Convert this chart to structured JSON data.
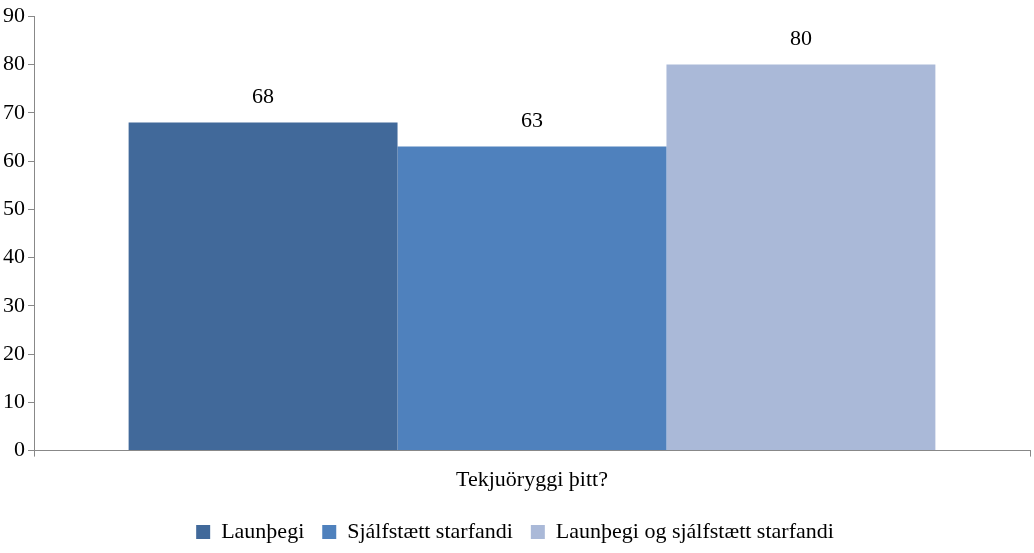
{
  "chart_data": {
    "type": "bar",
    "categories": [
      "Tekjuöryggi þitt?"
    ],
    "series": [
      {
        "name": "Launþegi",
        "color": "#41699a",
        "values": [
          68
        ]
      },
      {
        "name": "Sjálfstætt starfandi",
        "color": "#4f81bd",
        "values": [
          63
        ]
      },
      {
        "name": "Launþegi og sjálfstætt starfandi",
        "color": "#aab9d8",
        "values": [
          80
        ]
      }
    ],
    "ylim": [
      0,
      90
    ],
    "yticks": [
      0,
      10,
      20,
      30,
      40,
      50,
      60,
      70,
      80,
      90
    ],
    "grid": false,
    "legend": "bottom",
    "data_labels": true
  }
}
